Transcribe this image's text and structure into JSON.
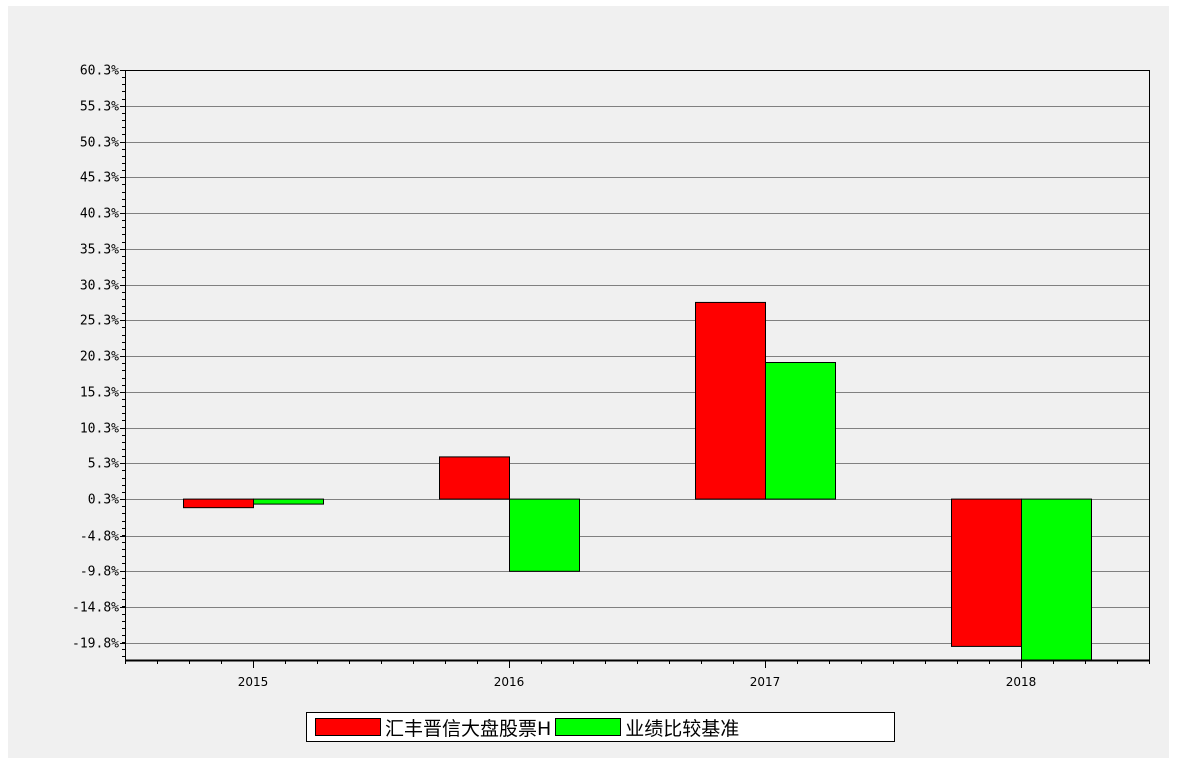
{
  "colors": {
    "series_1": "#ff0000",
    "series_2": "#00ff00",
    "bar_stroke": "#000000",
    "grid": "#808080",
    "panel_bg": "#f0f0f0"
  },
  "chart_data": {
    "type": "bar",
    "categories": [
      "2015",
      "2016",
      "2017",
      "2018"
    ],
    "series": [
      {
        "name": "汇丰晋信大盘股票H",
        "values": [
          -0.9,
          6.2,
          27.8,
          -20.3
        ]
      },
      {
        "name": "业绩比较基准",
        "values": [
          -0.4,
          -9.8,
          19.4,
          -22.2
        ]
      }
    ],
    "ylim": [
      -22.2,
      60.3
    ],
    "yticks": [
      60.3,
      55.3,
      50.3,
      45.3,
      40.3,
      35.3,
      30.3,
      25.3,
      20.3,
      15.3,
      10.3,
      5.3,
      0.3,
      -4.8,
      -9.8,
      -14.8,
      -19.8
    ],
    "ytick_labels": [
      "60.3%",
      "55.3%",
      "50.3%",
      "45.3%",
      "40.3%",
      "35.3%",
      "30.3%",
      "25.3%",
      "20.3%",
      "15.3%",
      "10.3%",
      "5.3%",
      "0.3%",
      "-4.8%",
      "-9.8%",
      "-14.8%",
      "-19.8%"
    ],
    "baseline": 0.3,
    "title": "",
    "xlabel": "",
    "ylabel": "",
    "grid": true,
    "legend_position": "bottom"
  }
}
